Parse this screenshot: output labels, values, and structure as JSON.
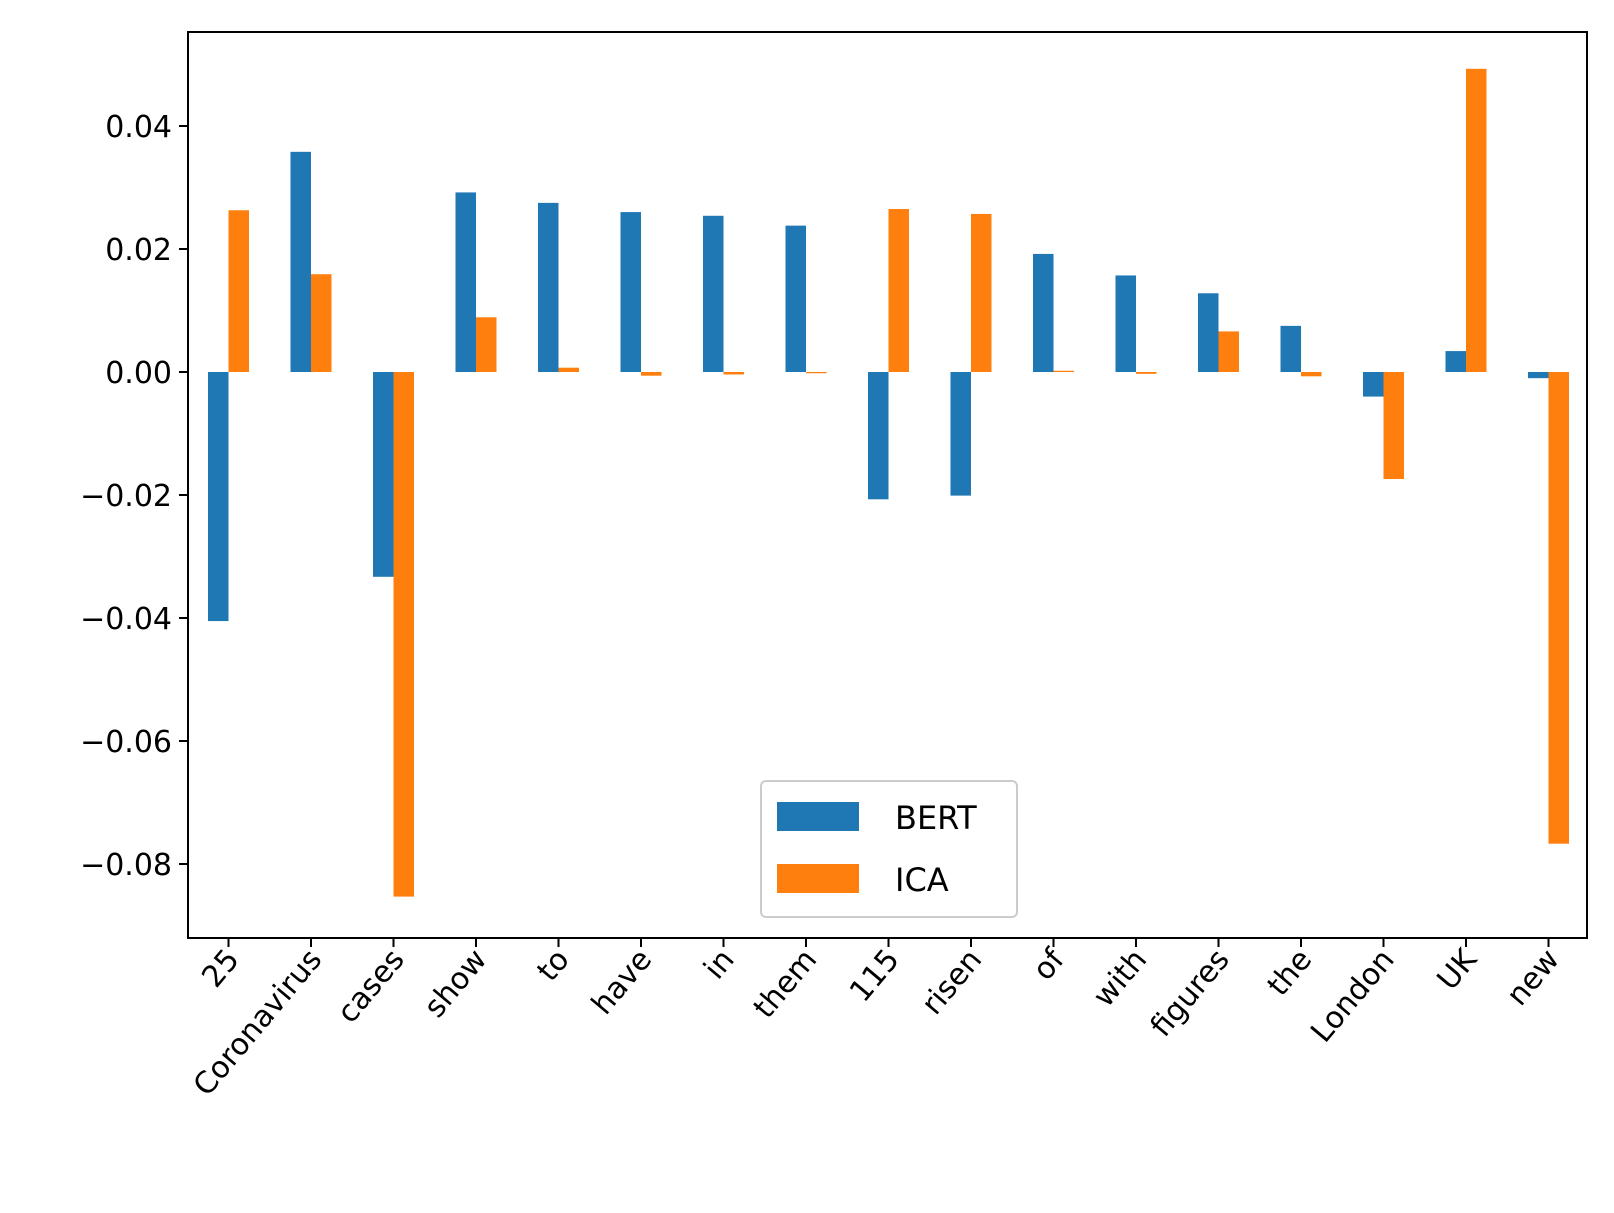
{
  "chart_data": {
    "type": "bar",
    "categories": [
      "25",
      "Coronavirus",
      "cases",
      "show",
      "to",
      "have",
      "in",
      "them",
      "115",
      "risen",
      "of",
      "with",
      "figures",
      "the",
      "London",
      "UK",
      "new"
    ],
    "series": [
      {
        "name": "BERT",
        "color": "#1f77b4",
        "values": [
          -0.0405,
          0.0358,
          -0.0333,
          0.0292,
          0.0275,
          0.026,
          0.0254,
          0.0238,
          -0.0207,
          -0.0201,
          0.0192,
          0.0157,
          0.0128,
          0.0075,
          -0.004,
          0.0034,
          -0.001
        ]
      },
      {
        "name": "ICA",
        "color": "#ff7f0e",
        "values": [
          0.0263,
          0.0159,
          -0.0853,
          0.0089,
          0.0007,
          -0.0006,
          -0.0004,
          -0.0002,
          0.0265,
          0.0257,
          0.0002,
          -0.0003,
          0.0066,
          -0.0007,
          -0.0174,
          0.0493,
          -0.0767
        ]
      }
    ],
    "yticks": [
      "0.04",
      "0.02",
      "0.00",
      "−0.02",
      "−0.04",
      "−0.06",
      "−0.08"
    ],
    "ylim": [
      -0.092,
      0.056
    ],
    "legend_position": "bottom-center",
    "grid": false
  }
}
